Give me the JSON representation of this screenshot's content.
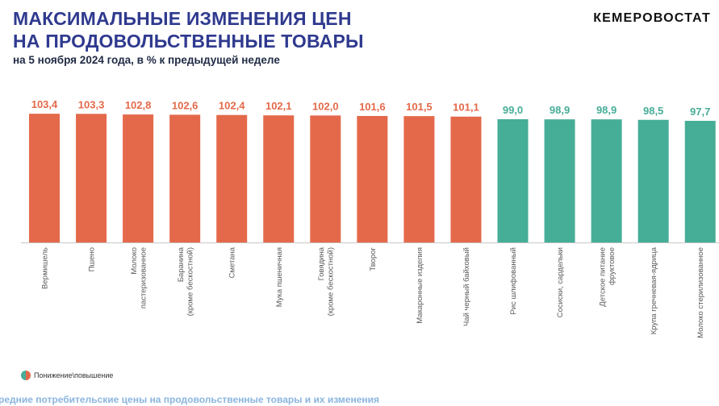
{
  "header": {
    "title_line1": "МАКСИМАЛЬНЫЕ ИЗМЕНЕНИЯ ЦЕН",
    "title_line2": "НА ПРОДОВОЛЬСТВЕННЫЕ ТОВАРЫ",
    "subtitle": "на 5 ноября 2024 года, в % к предыдущей неделе",
    "brand": "КЕМЕРОВОСТАТ"
  },
  "legend": {
    "label": "Понижение\\повышение"
  },
  "footer": {
    "text": "редние потребительские цены на продовольственные товары и их изменения"
  },
  "colors": {
    "increase": "#e4694a",
    "decrease": "#46ad97",
    "value_increase": "#e4694a",
    "value_decrease": "#46ad97",
    "title": "#2f3a8f"
  },
  "chart_data": {
    "type": "bar",
    "title": "МАКСИМАЛЬНЫЕ ИЗМЕНЕНИЯ ЦЕН НА ПРОДОВОЛЬСТВЕННЫЕ ТОВАРЫ",
    "subtitle": "на 5 ноября 2024 года, в % к предыдущей неделе",
    "categories": [
      [
        "Вермишель"
      ],
      [
        "Пшено"
      ],
      [
        "Молоко",
        "пастеризованное"
      ],
      [
        "Баранина",
        "(кроме бескостной)"
      ],
      [
        "Сметана"
      ],
      [
        "Мука пшеничная"
      ],
      [
        "Говядина",
        "(кроме бескостной)"
      ],
      [
        "Творог"
      ],
      [
        "Макаронные изделия"
      ],
      [
        "Чай черный байховый"
      ],
      [
        "Рис шлифованный"
      ],
      [
        "Сосиски, сардельки"
      ],
      [
        "Детское питание",
        "фруктовое"
      ],
      [
        "Крупа гречневая-ядрица"
      ],
      [
        "Молоко стерилизованное"
      ]
    ],
    "values": [
      103.4,
      103.3,
      102.8,
      102.6,
      102.4,
      102.1,
      102.0,
      101.6,
      101.5,
      101.1,
      99.0,
      98.9,
      98.9,
      98.5,
      97.7
    ],
    "value_labels": [
      "103,4",
      "103,3",
      "102,8",
      "102,6",
      "102,4",
      "102,1",
      "102,0",
      "101,6",
      "101,5",
      "101,1",
      "99,0",
      "98,9",
      "98,9",
      "98,5",
      "97,7"
    ],
    "threshold": 100,
    "baseline": 0,
    "grid": false,
    "legend_position": "bottom-left",
    "xlabel": "",
    "ylabel": ""
  }
}
